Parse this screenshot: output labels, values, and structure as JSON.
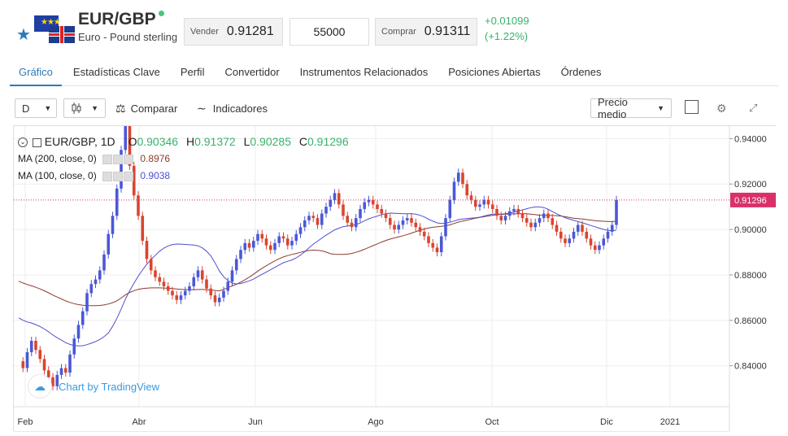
{
  "header": {
    "symbol": "EUR/GBP",
    "name": "Euro - Pound sterling",
    "sell_label": "Vender",
    "sell_value": "0.91281",
    "quantity": "55000",
    "buy_label": "Comprar",
    "buy_value": "0.91311",
    "change_abs": "+0.01099",
    "change_pct": "(+1.22%)",
    "star_icon": "star-icon",
    "flag_icon": "eur-gbp-flag-icon"
  },
  "tabs": [
    {
      "label": "Gráfico",
      "active": true
    },
    {
      "label": "Estadísticas Clave"
    },
    {
      "label": "Perfil"
    },
    {
      "label": "Convertidor"
    },
    {
      "label": "Instrumentos Relacionados"
    },
    {
      "label": "Posiciones Abiertas"
    },
    {
      "label": "Órdenes"
    }
  ],
  "toolbar": {
    "interval": "D",
    "compare": "Comparar",
    "indicators": "Indicadores",
    "price_mode": "Precio medio"
  },
  "legend": {
    "title": "EUR/GBP, 1D",
    "o_label": "O",
    "o_value": "0.90346",
    "h_label": "H",
    "h_value": "0.91372",
    "l_label": "L",
    "l_value": "0.90285",
    "c_label": "C",
    "c_value": "0.91296",
    "ma200_label": "MA (200, close, 0)",
    "ma200_value": "0.8976",
    "ma100_label": "MA (100, close, 0)",
    "ma100_value": "0.9038"
  },
  "watermark": "Chart by TradingView",
  "chart_data": {
    "type": "candlestick",
    "x_ticks": [
      "Feb",
      "Abr",
      "Jun",
      "Ago",
      "Oct",
      "Dic",
      "2021"
    ],
    "y_ticks": [
      "0.94000",
      "0.92000",
      "0.90000",
      "0.88000",
      "0.86000",
      "0.84000"
    ],
    "ylim": [
      0.822,
      0.9455
    ],
    "last_price": "0.91296",
    "colors": {
      "up": "#4b58d6",
      "down": "#d9452f",
      "ma200": "#8b3a2b",
      "ma100": "#4f4fd0",
      "price_line": "#d9306a"
    },
    "close_series": [
      0.842,
      0.839,
      0.846,
      0.851,
      0.847,
      0.843,
      0.838,
      0.835,
      0.831,
      0.836,
      0.839,
      0.837,
      0.845,
      0.852,
      0.858,
      0.864,
      0.872,
      0.876,
      0.878,
      0.882,
      0.889,
      0.898,
      0.906,
      0.918,
      0.935,
      0.948,
      0.928,
      0.915,
      0.906,
      0.895,
      0.887,
      0.882,
      0.879,
      0.877,
      0.875,
      0.873,
      0.871,
      0.869,
      0.871,
      0.873,
      0.875,
      0.879,
      0.882,
      0.878,
      0.874,
      0.871,
      0.868,
      0.87,
      0.873,
      0.877,
      0.882,
      0.887,
      0.891,
      0.894,
      0.892,
      0.895,
      0.898,
      0.896,
      0.893,
      0.891,
      0.894,
      0.897,
      0.896,
      0.893,
      0.895,
      0.898,
      0.901,
      0.904,
      0.906,
      0.905,
      0.902,
      0.907,
      0.91,
      0.913,
      0.916,
      0.911,
      0.906,
      0.903,
      0.901,
      0.905,
      0.909,
      0.912,
      0.913,
      0.911,
      0.909,
      0.907,
      0.905,
      0.902,
      0.9,
      0.902,
      0.904,
      0.905,
      0.903,
      0.901,
      0.899,
      0.897,
      0.894,
      0.892,
      0.89,
      0.897,
      0.905,
      0.913,
      0.921,
      0.925,
      0.92,
      0.915,
      0.913,
      0.91,
      0.911,
      0.913,
      0.911,
      0.909,
      0.906,
      0.904,
      0.906,
      0.908,
      0.909,
      0.907,
      0.905,
      0.903,
      0.901,
      0.903,
      0.905,
      0.907,
      0.905,
      0.902,
      0.899,
      0.896,
      0.894,
      0.896,
      0.899,
      0.902,
      0.899,
      0.896,
      0.893,
      0.891,
      0.893,
      0.896,
      0.899,
      0.902,
      0.913
    ]
  }
}
